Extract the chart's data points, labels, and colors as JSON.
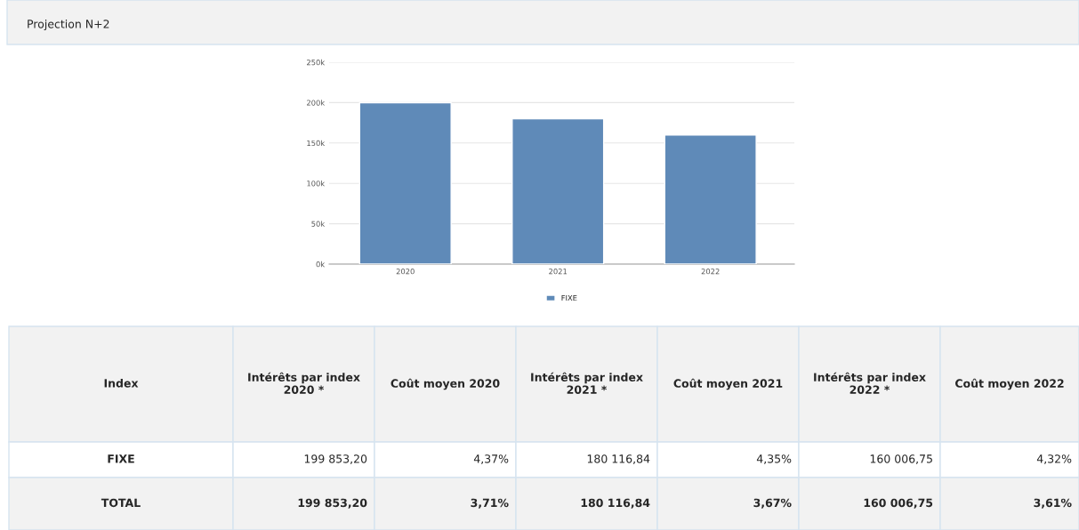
{
  "chart_data": {
    "type": "bar",
    "title": "Projection N+2",
    "categories": [
      "2020",
      "2021",
      "2022"
    ],
    "series": [
      {
        "name": "FIXE",
        "color": "#5f8ab8",
        "values": [
          199853.2,
          180116.84,
          160006.75
        ]
      }
    ],
    "ylim": [
      0,
      250000
    ],
    "yticks": [
      {
        "value": 0,
        "label": "0k"
      },
      {
        "value": 50000,
        "label": "50k"
      },
      {
        "value": 100000,
        "label": "100k"
      },
      {
        "value": 150000,
        "label": "150k"
      },
      {
        "value": 200000,
        "label": "200k"
      },
      {
        "value": 250000,
        "label": "250k"
      }
    ],
    "grid": "y",
    "legend": "bottom",
    "annotations": [
      "Index",
      "Intérêts par index 2020 *",
      "Coût moyen 2020",
      "Intérêts par index 2021 *",
      "Coût moyen 2021",
      "Intérêts par index 2022 *",
      "Coût moyen 2022",
      "FIXE",
      "199 853,20",
      "4,37%",
      "180 116,84",
      "4,35%",
      "160 006,75",
      "4,32%",
      "TOTAL",
      "199 853,20",
      "3,71%",
      "180 116,84",
      "3,67%",
      "160 006,75",
      "3,61%"
    ]
  }
}
